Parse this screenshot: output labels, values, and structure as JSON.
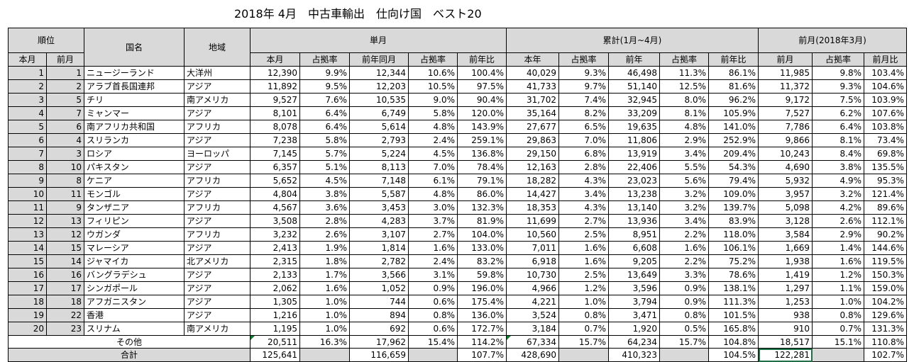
{
  "title": "2018年 4月　中古車輸出　仕向け国　ベスト20",
  "headers": {
    "rank": "順位",
    "rank_this": "本月",
    "rank_prev": "前月",
    "country": "国名",
    "region": "地域",
    "monthly": "単月",
    "cumulative": "累計(1月~4月)",
    "prev_month": "前月(2018年3月)",
    "m_this": "本月",
    "m_share": "占拠率",
    "m_last_year": "前年同月",
    "m_share2": "占拠率",
    "m_yoy": "前年比",
    "c_this": "本年",
    "c_share": "占拠率",
    "c_last_year": "前年",
    "c_share2": "占拠率",
    "c_yoy": "前年比",
    "p_prev": "前月",
    "p_share": "占拠率",
    "p_mom": "前月比"
  },
  "rows": [
    {
      "r": "1",
      "p": "1",
      "name": "ニュージーランド",
      "region": "大洋州",
      "m": "12,390",
      "ms": "9.9%",
      "ml": "12,344",
      "ms2": "10.6%",
      "my": "100.4%",
      "c": "40,029",
      "cs": "9.3%",
      "cl": "46,498",
      "cs2": "11.3%",
      "cy": "86.1%",
      "pv": "11,985",
      "ps": "9.8%",
      "pm": "103.4%"
    },
    {
      "r": "2",
      "p": "2",
      "name": "アラブ首長国連邦",
      "region": "アジア",
      "m": "11,892",
      "ms": "9.5%",
      "ml": "12,203",
      "ms2": "10.5%",
      "my": "97.5%",
      "c": "41,733",
      "cs": "9.7%",
      "cl": "51,140",
      "cs2": "12.5%",
      "cy": "81.6%",
      "pv": "11,372",
      "ps": "9.3%",
      "pm": "104.6%"
    },
    {
      "r": "3",
      "p": "5",
      "name": "チリ",
      "region": "南アメリカ",
      "m": "9,527",
      "ms": "7.6%",
      "ml": "10,535",
      "ms2": "9.0%",
      "my": "90.4%",
      "c": "31,702",
      "cs": "7.4%",
      "cl": "32,945",
      "cs2": "8.0%",
      "cy": "96.2%",
      "pv": "9,172",
      "ps": "7.5%",
      "pm": "103.9%"
    },
    {
      "r": "4",
      "p": "7",
      "name": "ミャンマー",
      "region": "アジア",
      "m": "8,101",
      "ms": "6.4%",
      "ml": "6,749",
      "ms2": "5.8%",
      "my": "120.0%",
      "c": "35,164",
      "cs": "8.2%",
      "cl": "33,209",
      "cs2": "8.1%",
      "cy": "105.9%",
      "pv": "7,527",
      "ps": "6.2%",
      "pm": "107.6%"
    },
    {
      "r": "5",
      "p": "6",
      "name": "南アフリカ共和国",
      "region": "アフリカ",
      "m": "8,078",
      "ms": "6.4%",
      "ml": "5,614",
      "ms2": "4.8%",
      "my": "143.9%",
      "c": "27,677",
      "cs": "6.5%",
      "cl": "19,635",
      "cs2": "4.8%",
      "cy": "141.0%",
      "pv": "7,786",
      "ps": "6.4%",
      "pm": "103.8%"
    },
    {
      "r": "6",
      "p": "4",
      "name": "スリランカ",
      "region": "アジア",
      "m": "7,238",
      "ms": "5.8%",
      "ml": "2,793",
      "ms2": "2.4%",
      "my": "259.1%",
      "c": "29,863",
      "cs": "7.0%",
      "cl": "11,806",
      "cs2": "2.9%",
      "cy": "252.9%",
      "pv": "9,866",
      "ps": "8.1%",
      "pm": "73.4%"
    },
    {
      "r": "7",
      "p": "3",
      "name": "ロシア",
      "region": "ヨーロッパ",
      "m": "7,145",
      "ms": "5.7%",
      "ml": "5,224",
      "ms2": "4.5%",
      "my": "136.8%",
      "c": "29,150",
      "cs": "6.8%",
      "cl": "13,919",
      "cs2": "3.4%",
      "cy": "209.4%",
      "pv": "10,243",
      "ps": "8.4%",
      "pm": "69.8%"
    },
    {
      "r": "8",
      "p": "10",
      "name": "パキスタン",
      "region": "アジア",
      "m": "6,357",
      "ms": "5.1%",
      "ml": "8,113",
      "ms2": "7.0%",
      "my": "78.4%",
      "c": "12,163",
      "cs": "2.8%",
      "cl": "22,406",
      "cs2": "5.5%",
      "cy": "54.3%",
      "pv": "4,690",
      "ps": "3.8%",
      "pm": "135.5%"
    },
    {
      "r": "9",
      "p": "8",
      "name": "ケニア",
      "region": "アフリカ",
      "m": "5,652",
      "ms": "4.5%",
      "ml": "7,148",
      "ms2": "6.1%",
      "my": "79.1%",
      "c": "18,282",
      "cs": "4.3%",
      "cl": "23,023",
      "cs2": "5.6%",
      "cy": "79.4%",
      "pv": "5,932",
      "ps": "4.9%",
      "pm": "95.3%"
    },
    {
      "r": "10",
      "p": "11",
      "name": "モンゴル",
      "region": "アジア",
      "m": "4,804",
      "ms": "3.8%",
      "ml": "5,587",
      "ms2": "4.8%",
      "my": "86.0%",
      "c": "14,427",
      "cs": "3.4%",
      "cl": "13,238",
      "cs2": "3.2%",
      "cy": "109.0%",
      "pv": "3,957",
      "ps": "3.2%",
      "pm": "121.4%"
    },
    {
      "r": "11",
      "p": "9",
      "name": "タンザニア",
      "region": "アフリカ",
      "m": "4,567",
      "ms": "3.6%",
      "ml": "3,453",
      "ms2": "3.0%",
      "my": "132.3%",
      "c": "18,353",
      "cs": "4.3%",
      "cl": "13,140",
      "cs2": "3.2%",
      "cy": "139.7%",
      "pv": "5,098",
      "ps": "4.2%",
      "pm": "89.6%"
    },
    {
      "r": "12",
      "p": "13",
      "name": "フィリピン",
      "region": "アジア",
      "m": "3,508",
      "ms": "2.8%",
      "ml": "4,283",
      "ms2": "3.7%",
      "my": "81.9%",
      "c": "11,699",
      "cs": "2.7%",
      "cl": "13,936",
      "cs2": "3.4%",
      "cy": "83.9%",
      "pv": "3,128",
      "ps": "2.6%",
      "pm": "112.1%"
    },
    {
      "r": "13",
      "p": "12",
      "name": "ウガンダ",
      "region": "アフリカ",
      "m": "3,232",
      "ms": "2.6%",
      "ml": "3,107",
      "ms2": "2.7%",
      "my": "104.0%",
      "c": "10,560",
      "cs": "2.5%",
      "cl": "8,951",
      "cs2": "2.2%",
      "cy": "118.0%",
      "pv": "3,584",
      "ps": "2.9%",
      "pm": "90.2%"
    },
    {
      "r": "14",
      "p": "15",
      "name": "マレーシア",
      "region": "アジア",
      "m": "2,413",
      "ms": "1.9%",
      "ml": "1,814",
      "ms2": "1.6%",
      "my": "133.0%",
      "c": "7,011",
      "cs": "1.6%",
      "cl": "6,608",
      "cs2": "1.6%",
      "cy": "106.1%",
      "pv": "1,669",
      "ps": "1.4%",
      "pm": "144.6%"
    },
    {
      "r": "15",
      "p": "14",
      "name": "ジャマイカ",
      "region": "北アメリカ",
      "m": "2,315",
      "ms": "1.8%",
      "ml": "2,782",
      "ms2": "2.4%",
      "my": "83.2%",
      "c": "6,918",
      "cs": "1.6%",
      "cl": "9,205",
      "cs2": "2.2%",
      "cy": "75.2%",
      "pv": "1,938",
      "ps": "1.6%",
      "pm": "119.5%"
    },
    {
      "r": "16",
      "p": "16",
      "name": "バングラデシュ",
      "region": "アジア",
      "m": "2,133",
      "ms": "1.7%",
      "ml": "3,566",
      "ms2": "3.1%",
      "my": "59.8%",
      "c": "10,730",
      "cs": "2.5%",
      "cl": "13,649",
      "cs2": "3.3%",
      "cy": "78.6%",
      "pv": "1,419",
      "ps": "1.2%",
      "pm": "150.3%"
    },
    {
      "r": "17",
      "p": "17",
      "name": "シンガポール",
      "region": "アジア",
      "m": "2,062",
      "ms": "1.6%",
      "ml": "1,052",
      "ms2": "0.9%",
      "my": "196.0%",
      "c": "4,966",
      "cs": "1.2%",
      "cl": "3,596",
      "cs2": "0.9%",
      "cy": "138.1%",
      "pv": "1,297",
      "ps": "1.1%",
      "pm": "159.0%"
    },
    {
      "r": "18",
      "p": "18",
      "name": "アフガニスタン",
      "region": "アジア",
      "m": "1,305",
      "ms": "1.0%",
      "ml": "744",
      "ms2": "0.6%",
      "my": "175.4%",
      "c": "4,221",
      "cs": "1.0%",
      "cl": "3,794",
      "cs2": "0.9%",
      "cy": "111.3%",
      "pv": "1,253",
      "ps": "1.0%",
      "pm": "104.2%"
    },
    {
      "r": "19",
      "p": "22",
      "name": "香港",
      "region": "アジア",
      "m": "1,216",
      "ms": "1.0%",
      "ml": "894",
      "ms2": "0.8%",
      "my": "136.0%",
      "c": "3,524",
      "cs": "0.8%",
      "cl": "3,471",
      "cs2": "0.8%",
      "cy": "101.5%",
      "pv": "938",
      "ps": "0.8%",
      "pm": "129.6%"
    },
    {
      "r": "20",
      "p": "23",
      "name": "スリナム",
      "region": "南アメリカ",
      "m": "1,195",
      "ms": "1.0%",
      "ml": "692",
      "ms2": "0.6%",
      "my": "172.7%",
      "c": "3,184",
      "cs": "0.7%",
      "cl": "1,920",
      "cs2": "0.5%",
      "cy": "165.8%",
      "pv": "910",
      "ps": "0.7%",
      "pm": "131.3%"
    }
  ],
  "other": {
    "label": "その他",
    "m": "20,511",
    "ms": "16.3%",
    "ml": "17,962",
    "ms2": "15.4%",
    "my": "114.2%",
    "c": "67,334",
    "cs": "15.7%",
    "cl": "64,234",
    "cs2": "15.7%",
    "cy": "104.8%",
    "pv": "18,517",
    "ps": "15.1%",
    "pm": "110.8%"
  },
  "total": {
    "label": "合計",
    "m": "125,641",
    "ml": "116,659",
    "my": "107.7%",
    "c": "428,690",
    "cl": "410,323",
    "cy": "104.5%",
    "pv": "122,281",
    "pm": "102.7%"
  }
}
